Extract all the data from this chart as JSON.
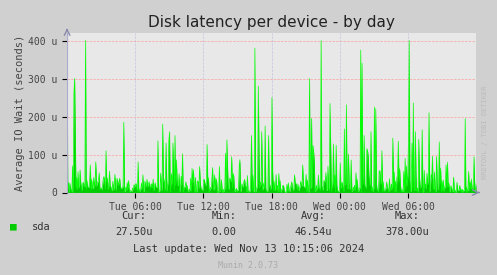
{
  "title": "Disk latency per device - by day",
  "ylabel": "Average IO Wait (seconds)",
  "background_color": "#d0d0d0",
  "plot_background_color": "#e8e8e8",
  "grid_color_major": "#ff9999",
  "grid_color_minor": "#bbbbdd",
  "line_color": "#00ff00",
  "fill_color": "#00cc00",
  "ylim": [
    0,
    420
  ],
  "ytick_positions": [
    0,
    100,
    200,
    300,
    400
  ],
  "ytick_labels": [
    "0",
    "100 u",
    "200 u",
    "300 u",
    "400 u"
  ],
  "xtick_labels": [
    "Tue 06:00",
    "Tue 12:00",
    "Tue 18:00",
    "Wed 00:00",
    "Wed 06:00"
  ],
  "legend_label": "sda",
  "legend_color": "#00cc00",
  "cur_label": "Cur:",
  "cur_val": "27.50u",
  "min_label": "Min:",
  "min_val": "0.00",
  "avg_label": "Avg:",
  "avg_val": "46.54u",
  "max_label": "Max:",
  "max_val": "378.00u",
  "last_update": "Last update: Wed Nov 13 10:15:06 2024",
  "munin_version": "Munin 2.0.73",
  "watermark": "RRDTOOL / TOBI OETIKER",
  "title_fontsize": 11,
  "label_fontsize": 7.5,
  "tick_fontsize": 7,
  "info_fontsize": 7.5
}
